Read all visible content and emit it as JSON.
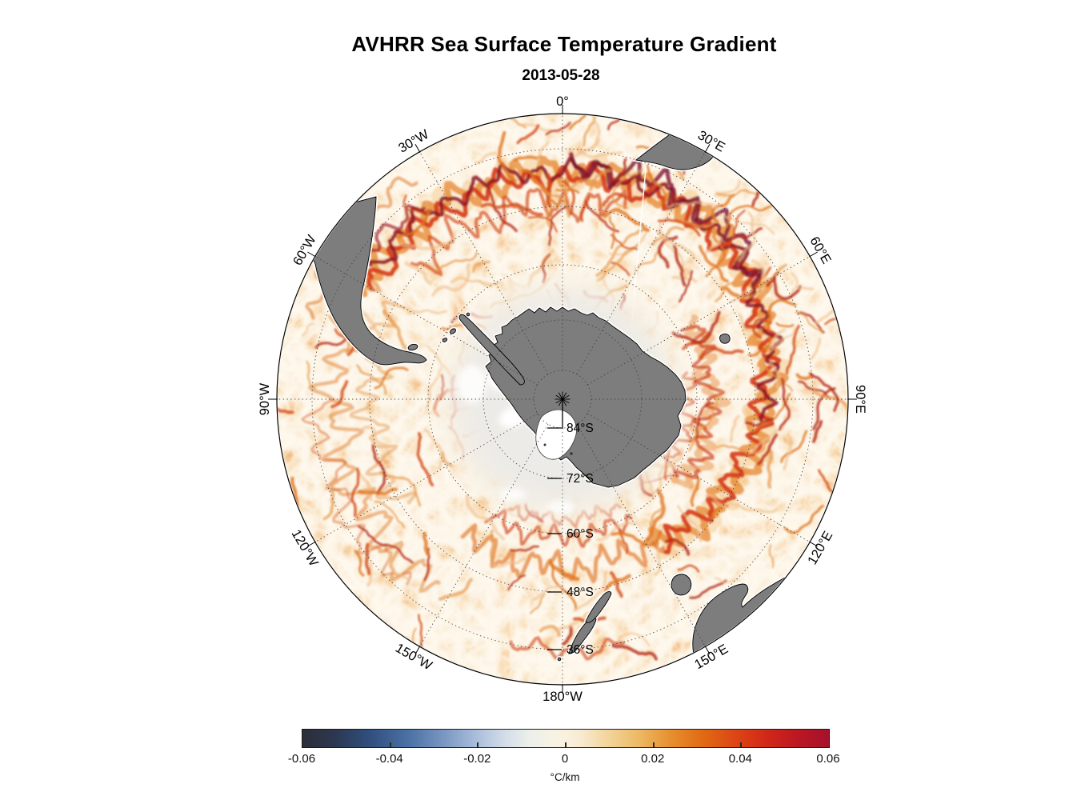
{
  "header": {
    "title": "AVHRR Sea Surface Temperature Gradient",
    "subtitle": "2013-05-28"
  },
  "map": {
    "lon_labels": [
      {
        "text": "0°",
        "angle": 0,
        "rot": 0
      },
      {
        "text": "30°E",
        "angle": 30,
        "rot": 30
      },
      {
        "text": "60°E",
        "angle": 60,
        "rot": 60
      },
      {
        "text": "90°E",
        "angle": 90,
        "rot": 90
      },
      {
        "text": "120°E",
        "angle": 120,
        "rot": -60
      },
      {
        "text": "150°E",
        "angle": 150,
        "rot": -30
      },
      {
        "text": "180°W",
        "angle": 180,
        "rot": 0
      },
      {
        "text": "150°W",
        "angle": 210,
        "rot": 30
      },
      {
        "text": "120°W",
        "angle": 240,
        "rot": 60
      },
      {
        "text": "90°W",
        "angle": 270,
        "rot": -90
      },
      {
        "text": "60°W",
        "angle": 300,
        "rot": -60
      },
      {
        "text": "30°W",
        "angle": 330,
        "rot": -30
      }
    ],
    "lat_labels": [
      "84°S",
      "72°S",
      "60°S",
      "48°S",
      "36°S"
    ]
  },
  "colorbar": {
    "ticks": [
      "-0.06",
      "-0.04",
      "-0.02",
      "0",
      "0.02",
      "0.04",
      "0.06"
    ],
    "unit_label": "°C/km",
    "stops": [
      [
        0,
        "#2b2e37"
      ],
      [
        0.06,
        "#2c3750"
      ],
      [
        0.13,
        "#31507f"
      ],
      [
        0.2,
        "#4a70a4"
      ],
      [
        0.27,
        "#7b97c2"
      ],
      [
        0.33,
        "#a9bedb"
      ],
      [
        0.385,
        "#d3dde9"
      ],
      [
        0.43,
        "#ecefeb"
      ],
      [
        0.47,
        "#f6f2e5"
      ],
      [
        0.5,
        "#f9f1de"
      ],
      [
        0.53,
        "#f8ead0"
      ],
      [
        0.58,
        "#f3d49a"
      ],
      [
        0.64,
        "#edb863"
      ],
      [
        0.7,
        "#e68f2e"
      ],
      [
        0.76,
        "#e16a14"
      ],
      [
        0.82,
        "#dc4715"
      ],
      [
        0.88,
        "#d22819"
      ],
      [
        0.94,
        "#bc1722"
      ],
      [
        1,
        "#a5122c"
      ]
    ]
  },
  "colors": {
    "land": "#7d7d7d",
    "land_outline": "#000000",
    "ocean_background": "#fbf0dd",
    "sea_ice_zone": "#edebe7",
    "filament_orange": "#e0761f",
    "filament_red": "#d63a18",
    "filament_dark_red": "#8e1527",
    "graticule": "#3b3b3b"
  },
  "chart_data": {
    "type": "heatmap",
    "title": "AVHRR Sea Surface Temperature Gradient",
    "subtitle_date": "2013-05-28",
    "projection": "south polar stereographic, South Pole centered, boundary near 30°S",
    "variable": "sea surface temperature gradient",
    "unit": "°C/km",
    "colorbar": {
      "min": -0.06,
      "max": 0.06,
      "ticks": [
        -0.06,
        -0.04,
        -0.02,
        0,
        0.02,
        0.04,
        0.06
      ],
      "palette": "diverging: dark slate -> navy blue -> pale blue -> off-white/cream -> orange -> red -> dark crimson"
    },
    "graticule": {
      "latitude_rings_deg_south": [
        84,
        72,
        60,
        48,
        36
      ],
      "longitude_line_step_deg": 30,
      "longitude_labels": [
        "0°",
        "30°E",
        "60°E",
        "90°E",
        "120°E",
        "150°E",
        "180°W",
        "150°W",
        "120°W",
        "90°W",
        "60°W",
        "30°W"
      ]
    },
    "visible_features": [
      "Antarctica at center shown as gray land with black coastline; Ross Ice Shelf embayment shown white",
      "near-white low-gradient sea-ice zone surrounding Antarctica out to roughly 60°S",
      "strong gradient band (~0.03 to 0.06 °C/km) along the Antarctic Circumpolar Current, strongest in the Atlantic-Indian sector between 60°W and 120°E (Agulhas Return Current meanders)",
      "mottled moderate gradients (~0.01-0.02 °C/km) over the rest of the open ocean",
      "other gray land: southern South America, southern Africa at 30°E edge, Australia with Tasmania near 120-150°E edge, New Zealand near 180°",
      "thin white satellite swath gap seam running south from the African coast"
    ]
  }
}
